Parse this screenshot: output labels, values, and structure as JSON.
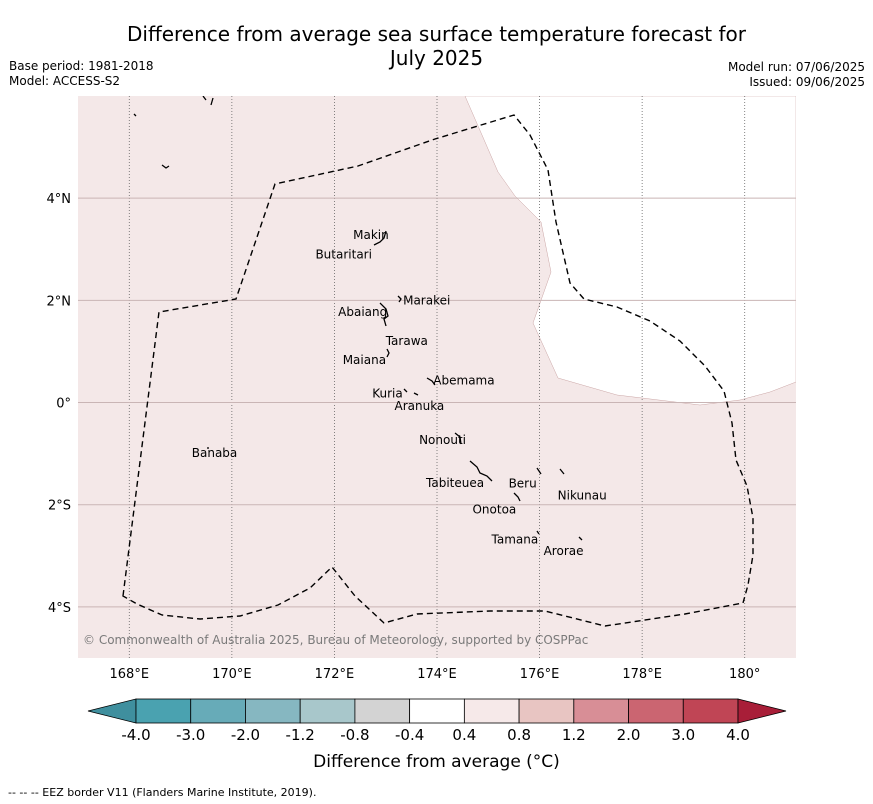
{
  "header": {
    "title_line1": "Difference from average sea surface temperature forecast for",
    "title_line2": "July 2025",
    "base_period": "Base period: 1981-2018",
    "model": "Model: ACCESS-S2",
    "model_run": "Model run: 07/06/2025",
    "issued": "Issued: 09/06/2025"
  },
  "map": {
    "lon_ticks": [
      {
        "value": 168,
        "label": "168°E"
      },
      {
        "value": 170,
        "label": "170°E"
      },
      {
        "value": 172,
        "label": "172°E"
      },
      {
        "value": 174,
        "label": "174°E"
      },
      {
        "value": 176,
        "label": "176°E"
      },
      {
        "value": 178,
        "label": "178°E"
      },
      {
        "value": 180,
        "label": "180°"
      }
    ],
    "lat_ticks": [
      {
        "value": 4,
        "label": "4°N"
      },
      {
        "value": 2,
        "label": "2°N"
      },
      {
        "value": 0,
        "label": "0°"
      },
      {
        "value": -2,
        "label": "2°S"
      },
      {
        "value": -4,
        "label": "4°S"
      }
    ],
    "lon_range": [
      167,
      181
    ],
    "lat_range": [
      -5,
      6
    ],
    "background_color": "#f4e8e8",
    "islands": [
      {
        "name": "Makin",
        "lon": 172.95,
        "lat": 3.2
      },
      {
        "name": "Butaritari",
        "lon": 172.8,
        "lat": 3.05
      },
      {
        "name": "Marakei",
        "lon": 173.3,
        "lat": 2.0
      },
      {
        "name": "Abaiang",
        "lon": 172.95,
        "lat": 1.85
      },
      {
        "name": "Tarawa",
        "lon": 173.0,
        "lat": 1.4
      },
      {
        "name": "Maiana",
        "lon": 173.0,
        "lat": 0.95
      },
      {
        "name": "Abemama",
        "lon": 173.85,
        "lat": 0.45
      },
      {
        "name": "Kuria",
        "lon": 173.4,
        "lat": 0.22
      },
      {
        "name": "Aranuka",
        "lon": 173.6,
        "lat": 0.15
      },
      {
        "name": "Nonouti",
        "lon": 174.45,
        "lat": -0.65
      },
      {
        "name": "Banaba",
        "lon": 169.55,
        "lat": -0.85
      },
      {
        "name": "Tabiteuea",
        "lon": 174.8,
        "lat": -1.3
      },
      {
        "name": "Beru",
        "lon": 176.0,
        "lat": -1.35
      },
      {
        "name": "Nikunau",
        "lon": 176.45,
        "lat": -1.35
      },
      {
        "name": "Onotoa",
        "lon": 175.55,
        "lat": -1.8
      },
      {
        "name": "Tamana",
        "lon": 175.98,
        "lat": -2.5
      },
      {
        "name": "Arorae",
        "lon": 176.8,
        "lat": -2.65
      }
    ],
    "copyright": "© Commonwealth of Australia 2025, Bureau of Meteorology, supported by COSPPac"
  },
  "colorbar": {
    "ticks": [
      "-4.0",
      "-3.0",
      "-2.0",
      "-1.2",
      "-0.8",
      "-0.4",
      "0.4",
      "0.8",
      "1.2",
      "2.0",
      "3.0",
      "4.0"
    ],
    "colors": [
      "#3f8f9e",
      "#4aa2b0",
      "#67abb8",
      "#86b7c1",
      "#a8c7cb",
      "#d3d3d3",
      "#ffffff",
      "#f6e9e9",
      "#e8c5c2",
      "#d88e96",
      "#cb6571",
      "#c04555",
      "#a81e38"
    ],
    "label": "Difference from average (°C)"
  },
  "footnote": "--  --  -- EEZ border V11 (Flanders Marine Institute, 2019)."
}
